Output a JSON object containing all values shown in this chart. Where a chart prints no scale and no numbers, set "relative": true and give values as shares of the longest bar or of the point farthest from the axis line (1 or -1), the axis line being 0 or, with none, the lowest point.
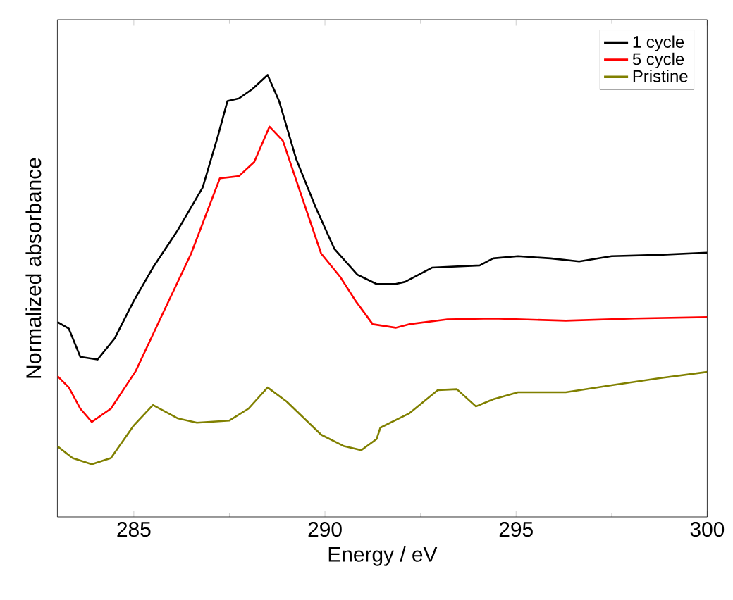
{
  "chart_data": {
    "type": "line",
    "relative": true,
    "xlabel": "Energy / eV",
    "ylabel": "Normalized absorbance",
    "xlim": [
      283,
      300
    ],
    "xticks": [
      285,
      290,
      295,
      300
    ],
    "legend": "top right",
    "line_style": "solid",
    "marker": "none",
    "series": [
      {
        "name": "1 cycle",
        "color": "#000000",
        "x": [
          283.0,
          283.3,
          283.6,
          284.05,
          284.5,
          285.0,
          285.5,
          286.15,
          286.8,
          287.2,
          287.45,
          287.75,
          288.1,
          288.5,
          288.8,
          289.25,
          289.75,
          290.25,
          290.85,
          291.35,
          291.85,
          292.1,
          292.8,
          294.05,
          294.4,
          295.05,
          295.9,
          296.65,
          297.5,
          298.75,
          300.0
        ],
        "values": [
          0.441,
          0.426,
          0.362,
          0.356,
          0.404,
          0.489,
          0.564,
          0.649,
          0.745,
          0.862,
          0.941,
          0.947,
          0.968,
          1.0,
          0.941,
          0.809,
          0.702,
          0.606,
          0.548,
          0.527,
          0.527,
          0.532,
          0.564,
          0.569,
          0.585,
          0.59,
          0.585,
          0.578,
          0.59,
          0.593,
          0.598
        ]
      },
      {
        "name": "5 cycle",
        "color": "#ff0000",
        "x": [
          283.0,
          283.3,
          283.6,
          283.9,
          284.4,
          285.05,
          285.8,
          286.5,
          287.25,
          287.75,
          288.15,
          288.55,
          288.9,
          289.4,
          289.9,
          290.4,
          290.8,
          291.25,
          291.85,
          292.2,
          293.2,
          294.4,
          296.3,
          298.1,
          300.0
        ],
        "values": [
          0.319,
          0.293,
          0.245,
          0.215,
          0.245,
          0.33,
          0.468,
          0.596,
          0.766,
          0.771,
          0.803,
          0.883,
          0.851,
          0.723,
          0.596,
          0.543,
          0.489,
          0.436,
          0.428,
          0.436,
          0.447,
          0.449,
          0.444,
          0.449,
          0.452
        ]
      },
      {
        "name": "Pristine",
        "color": "#808000",
        "x": [
          283.0,
          283.4,
          283.9,
          284.4,
          285.0,
          285.5,
          286.15,
          286.65,
          287.5,
          288.0,
          288.5,
          289.0,
          289.9,
          290.5,
          290.95,
          291.35,
          291.45,
          292.2,
          292.95,
          293.45,
          293.95,
          294.4,
          295.05,
          296.3,
          297.5,
          298.75,
          300.0
        ],
        "values": [
          0.16,
          0.133,
          0.119,
          0.133,
          0.207,
          0.253,
          0.223,
          0.213,
          0.218,
          0.245,
          0.293,
          0.261,
          0.186,
          0.16,
          0.151,
          0.176,
          0.202,
          0.234,
          0.287,
          0.289,
          0.25,
          0.266,
          0.282,
          0.282,
          0.298,
          0.314,
          0.328
        ]
      }
    ]
  }
}
